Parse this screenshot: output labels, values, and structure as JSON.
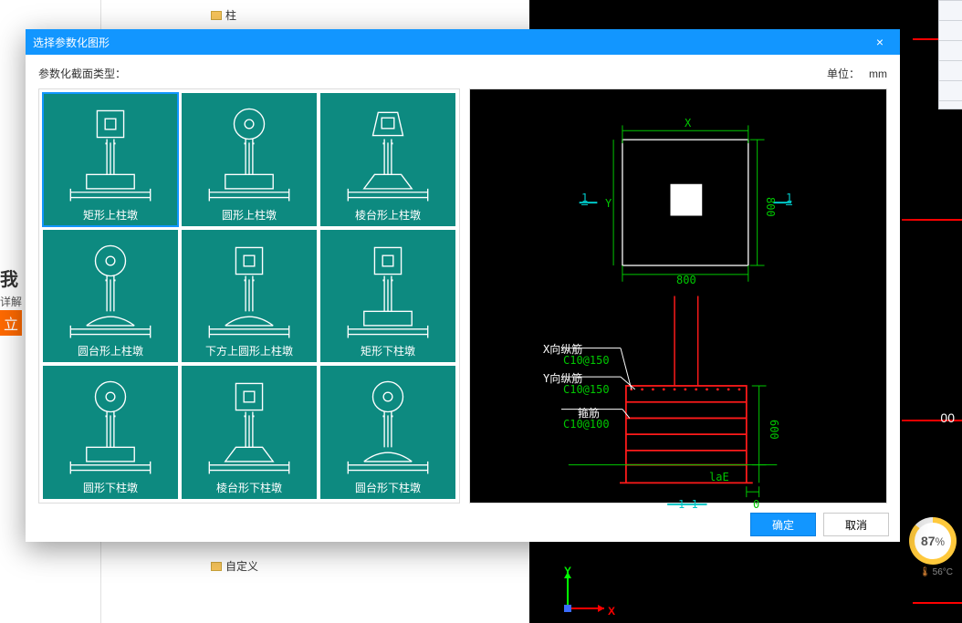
{
  "desktop": {
    "left_word": "我",
    "left_sub": "详解",
    "left_btn": "立",
    "tree_top": "柱",
    "tree_bottom": "自定义",
    "right_number": "00",
    "cpu_percent": "87",
    "cpu_percent_suffix": "%",
    "cpu_temp": "56°C",
    "axis_x": "X",
    "axis_y": "Y"
  },
  "modal": {
    "title": "选择参数化图形",
    "label_type": "参数化截面类型：",
    "label_unit": "单位：",
    "unit_value": "mm",
    "ok": "确定",
    "cancel": "取消",
    "tiles": [
      {
        "label": "矩形上柱墩",
        "icon": "rect_top",
        "selected": true
      },
      {
        "label": "圆形上柱墩",
        "icon": "circ_top",
        "selected": false
      },
      {
        "label": "棱台形上柱墩",
        "icon": "prism_top",
        "selected": false
      },
      {
        "label": "圆台形上柱墩",
        "icon": "cone_top",
        "selected": false
      },
      {
        "label": "下方上圆形上柱墩",
        "icon": "sq_circ_top",
        "selected": false
      },
      {
        "label": "矩形下柱墩",
        "icon": "rect_bot",
        "selected": false
      },
      {
        "label": "圆形下柱墩",
        "icon": "circ_bot",
        "selected": false
      },
      {
        "label": "棱台形下柱墩",
        "icon": "prism_bot",
        "selected": false
      },
      {
        "label": "圆台形下柱墩",
        "icon": "cone_bot",
        "selected": false
      }
    ]
  },
  "preview": {
    "plan": {
      "dim_x_label": "X",
      "dim_x_val": "800",
      "dim_y_label": "Y",
      "dim_y_val": "800",
      "sec_left": "1",
      "sec_right": "1"
    },
    "elev": {
      "rows": [
        {
          "lbl": "X向纵筋",
          "val": "C10@150",
          "lbl_color": "#ffffff"
        },
        {
          "lbl": "Y向纵筋",
          "val": "C10@150",
          "lbl_color": "#ffffff"
        },
        {
          "lbl": "箍筋",
          "val": "C10@100",
          "lbl_color": "#ffffff"
        }
      ],
      "height": "600",
      "laE": "laE",
      "zero": "0",
      "section": "1-1"
    },
    "colors": {
      "dim": "#00c800",
      "red": "#ff1a1a",
      "cyan": "#00c8c8",
      "white": "#ffffff"
    }
  }
}
